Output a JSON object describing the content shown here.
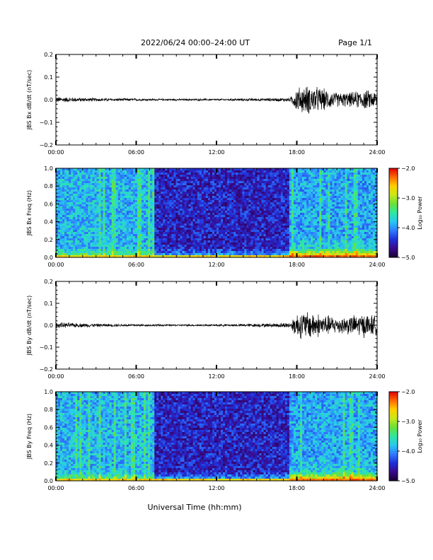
{
  "header": {
    "title": "2022/06/24  00:00–24:00 UT",
    "page": "Page 1/1"
  },
  "x_axis_title": "Universal Time (hh:mm)",
  "colorbar": {
    "label": "Log₁₀ Power",
    "ticks": [
      "−2.0",
      "−3.0",
      "−4.0",
      "−5.0"
    ],
    "range": [
      -5.0,
      -2.0
    ],
    "colormap": [
      "#1a0033",
      "#3a0a8a",
      "#1f2fd8",
      "#2f7bff",
      "#28c8f0",
      "#2fe8a0",
      "#6ae03a",
      "#c8e818",
      "#ffd000",
      "#ff6a00",
      "#e00000"
    ]
  },
  "chart_data": [
    {
      "type": "line",
      "ylabel": "JBS Bx dB/dt (nT/sec)",
      "xlim": [
        "00:00",
        "24:00"
      ],
      "xticks": [
        "00:00",
        "06:00",
        "12:00",
        "18:00",
        "24:00"
      ],
      "ylim": [
        -0.2,
        0.2
      ],
      "yticks": [
        "0.2",
        "0.1",
        "0.0",
        "−0.1",
        "−0.2"
      ],
      "series": [
        {
          "x": [
            "00:00",
            "02:00",
            "04:00",
            "06:00",
            "08:00",
            "10:00",
            "12:00",
            "14:00",
            "16:00",
            "17:30",
            "18:00",
            "19:00",
            "20:00",
            "21:00",
            "22:00",
            "23:00",
            "24:00"
          ],
          "amplitude": [
            0.012,
            0.008,
            0.006,
            0.005,
            0.004,
            0.004,
            0.004,
            0.005,
            0.006,
            0.008,
            0.05,
            0.06,
            0.045,
            0.03,
            0.03,
            0.04,
            0.035
          ]
        }
      ]
    },
    {
      "type": "heatmap",
      "ylabel": "JBS Bx Freq (Hz)",
      "xlim": [
        "00:00",
        "24:00"
      ],
      "xticks": [
        "00:00",
        "06:00",
        "12:00",
        "18:00",
        "24:00"
      ],
      "ylim": [
        0.0,
        1.0
      ],
      "yticks": [
        "1.0",
        "0.8",
        "0.6",
        "0.4",
        "0.2",
        "0.0"
      ],
      "zlim": [
        -5.0,
        -2.0
      ]
    },
    {
      "type": "line",
      "ylabel": "JBS By dB/dt (nT/sec)",
      "xlim": [
        "00:00",
        "24:00"
      ],
      "xticks": [
        "00:00",
        "06:00",
        "12:00",
        "18:00",
        "24:00"
      ],
      "ylim": [
        -0.2,
        0.2
      ],
      "yticks": [
        "0.2",
        "0.1",
        "0.0",
        "−0.1",
        "−0.2"
      ],
      "series": [
        {
          "x": [
            "00:00",
            "02:00",
            "04:00",
            "06:00",
            "08:00",
            "10:00",
            "12:00",
            "14:00",
            "16:00",
            "17:30",
            "18:00",
            "19:00",
            "20:00",
            "21:00",
            "22:00",
            "23:00",
            "24:00"
          ],
          "amplitude": [
            0.012,
            0.008,
            0.006,
            0.005,
            0.004,
            0.004,
            0.004,
            0.006,
            0.008,
            0.012,
            0.055,
            0.06,
            0.045,
            0.035,
            0.04,
            0.05,
            0.04
          ]
        }
      ]
    },
    {
      "type": "heatmap",
      "ylabel": "JBS By Freq (Hz)",
      "xlim": [
        "00:00",
        "24:00"
      ],
      "xticks": [
        "00:00",
        "06:00",
        "12:00",
        "18:00",
        "24:00"
      ],
      "ylim": [
        0.0,
        1.0
      ],
      "yticks": [
        "1.0",
        "0.8",
        "0.6",
        "0.4",
        "0.2",
        "0.0"
      ],
      "zlim": [
        -5.0,
        -2.0
      ]
    }
  ]
}
